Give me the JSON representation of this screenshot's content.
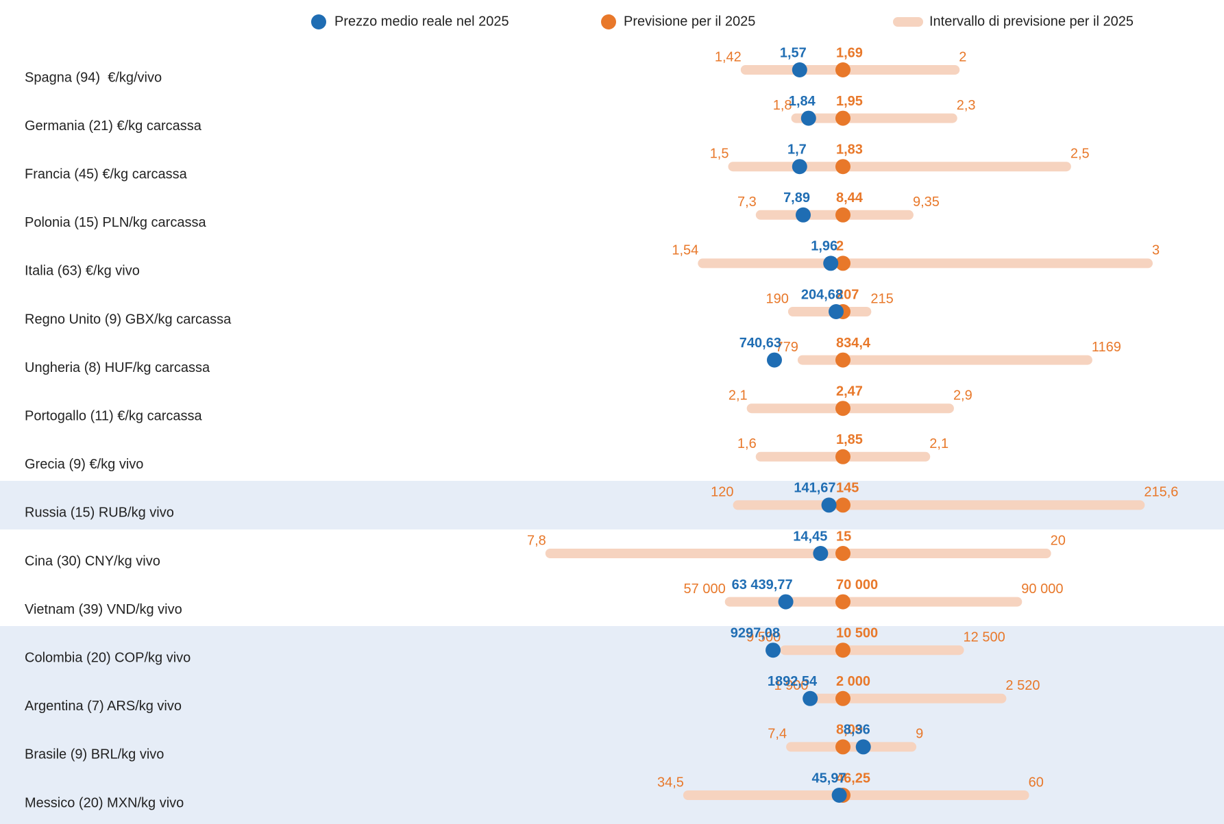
{
  "chart_data": {
    "type": "dot",
    "categories": [
      "Spagna (94)  €/kg/vivo",
      "Germania (21) €/kg carcassa",
      "Francia (45) €/kg carcassa",
      "Polonia (15) PLN/kg carcassa",
      "Italia (63) €/kg vivo",
      "Regno Unito (9) GBX/kg carcassa",
      "Ungheria (8) HUF/kg carcassa",
      "Portogallo (11) €/kg carcassa",
      "Grecia (9) €/kg vivo",
      "Russia (15) RUB/kg vivo",
      "Cina (30) CNY/kg vivo",
      "Vietnam (39) VND/kg vivo",
      "Colombia (20) COP/kg vivo",
      "Argentina (7) ARS/kg vivo",
      "Brasile (9) BRL/kg vivo",
      "Messico (20) MXN/kg vivo"
    ],
    "series": [
      {
        "name": "Prezzo medio reale nel 2025",
        "color": "#1f6db3",
        "values": [
          1.57,
          1.84,
          1.7,
          7.89,
          1.96,
          204.68,
          740.63,
          null,
          null,
          141.67,
          14.45,
          63439.77,
          9297.08,
          1892.54,
          8.36,
          45.97
        ],
        "value_labels": [
          "1,57",
          "1,84",
          "1,7",
          "7,89",
          "1,96",
          "204,68",
          "740,63",
          null,
          null,
          "141,67",
          "14,45",
          "63 439,77",
          "9297,08",
          "1892,54",
          "8,36",
          "45,97"
        ]
      },
      {
        "name": "Previsione per il 2025",
        "color": "#e8782a",
        "values": [
          1.69,
          1.95,
          1.83,
          8.44,
          2,
          207,
          834.4,
          2.47,
          1.85,
          145,
          15,
          70000,
          10500,
          2000,
          8.09,
          46.25
        ],
        "value_labels": [
          "1,69",
          "1,95",
          "1,83",
          "8,44",
          "2",
          "207",
          "834,4",
          "2,47",
          "1,85",
          "145",
          "15",
          "70 000",
          "10 500",
          "2 000",
          "8,09",
          "46,25"
        ]
      }
    ],
    "interval": {
      "name": "Intervallo di previsione per il 2025",
      "color": "#f6d3bf",
      "low": [
        1.42,
        1.8,
        1.5,
        7.3,
        1.54,
        190,
        779,
        2.1,
        1.6,
        120,
        7.8,
        57000,
        9500,
        1900,
        7.4,
        34.5
      ],
      "low_labels": [
        "1,42",
        "1,8",
        "1,5",
        "7,3",
        "1,54",
        "190",
        "779",
        "2,1",
        "1,6",
        "120",
        "7,8",
        "57 000",
        "9 500",
        "1 900",
        "7,4",
        "34,5"
      ],
      "high": [
        2,
        2.3,
        2.5,
        9.35,
        3,
        215,
        1169,
        2.9,
        2.1,
        215.6,
        20,
        90000,
        12500,
        2520,
        9,
        60
      ],
      "high_labels": [
        "2",
        "2,3",
        "2,5",
        "9,35",
        "3",
        "215",
        "1169",
        "2,9",
        "2,1",
        "215,6",
        "20",
        "90 000",
        "12 500",
        "2 520",
        "9",
        "60"
      ]
    }
  }
}
